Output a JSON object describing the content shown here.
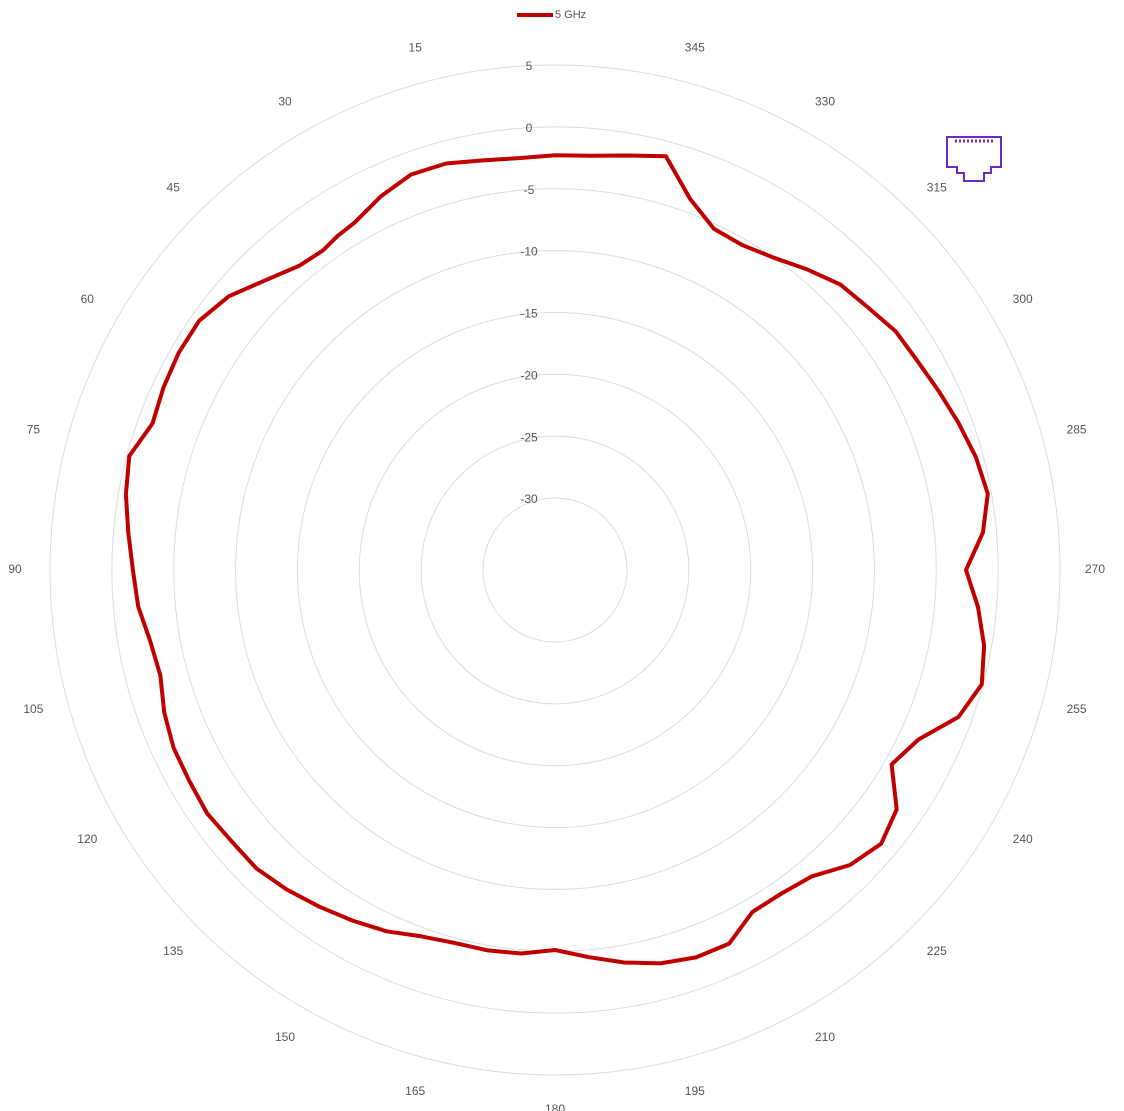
{
  "chart_data": {
    "type": "polar-line",
    "title": "",
    "legend": {
      "position": "top-center",
      "entries": [
        {
          "name": "5 GHz",
          "color": "#c00000"
        }
      ]
    },
    "angle_direction": "counterclockwise",
    "zero_angle": "top",
    "angle_ticks": [
      0,
      15,
      30,
      45,
      60,
      75,
      90,
      105,
      120,
      135,
      150,
      165,
      180,
      195,
      210,
      225,
      240,
      255,
      270,
      285,
      300,
      315,
      330,
      345
    ],
    "angle_tick_labels": [
      "",
      "15",
      "30",
      "45",
      "60",
      "75",
      "90",
      "105",
      "120",
      "135",
      "150",
      "165",
      "180",
      "195",
      "210",
      "225",
      "240",
      "255",
      "270",
      "285",
      "300",
      "315",
      "330",
      "345"
    ],
    "radial_range": [
      -30,
      5
    ],
    "radial_ticks": [
      -30,
      -25,
      -20,
      -15,
      -10,
      -5,
      0,
      5
    ],
    "radial_tick_labels": [
      "-30",
      "-25",
      "-20",
      "-15",
      "-10",
      "-5",
      "0",
      "5"
    ],
    "grid": true,
    "series": [
      {
        "name": "5 GHz",
        "color": "#c00000",
        "theta": [
          0,
          5,
          10,
          15,
          20,
          25,
          30,
          33,
          36,
          40,
          45,
          50,
          55,
          60,
          65,
          70,
          75,
          80,
          85,
          90,
          95,
          100,
          105,
          110,
          115,
          120,
          125,
          130,
          135,
          140,
          145,
          150,
          155,
          160,
          165,
          170,
          175,
          180,
          185,
          190,
          195,
          200,
          205,
          210,
          215,
          220,
          225,
          230,
          235,
          240,
          245,
          250,
          255,
          260,
          265,
          270,
          275,
          280,
          285,
          290,
          295,
          300,
          305,
          310,
          315,
          320,
          325,
          330,
          335,
          340,
          345,
          350,
          355,
          360
        ],
        "r": [
          -2.3,
          -2.4,
          -2.2,
          -1.8,
          -1.8,
          -2.5,
          -3.4,
          -3.6,
          -3.9,
          -3.7,
          -2.7,
          -1.4,
          -0.7,
          -0.7,
          -0.9,
          -1.2,
          -0.2,
          -0.6,
          -1.2,
          -1.7,
          -2.0,
          -2.6,
          -2.8,
          -2.2,
          -1.8,
          -1.7,
          -1.5,
          -1.7,
          -1.7,
          -2.1,
          -2.6,
          -3.1,
          -3.6,
          -4.3,
          -4.6,
          -4.6,
          -4.7,
          -5.1,
          -4.4,
          -3.6,
          -2.9,
          -2.5,
          -2.5,
          -3.9,
          -3.9,
          -3.5,
          -2.1,
          -1.4,
          -2.1,
          -4.4,
          -3.4,
          -1.1,
          -0.1,
          -0.6,
          -1.5,
          -2.6,
          -1.1,
          -0.3,
          -0.6,
          -1.1,
          -1.6,
          -2.0,
          -2.2,
          -2.8,
          -3.2,
          -4.1,
          -5.0,
          -5.5,
          -5.4,
          -3.9,
          -1.2,
          -1.8,
          -2.2,
          -2.3
        ]
      }
    ]
  },
  "decoration": {
    "icon": "ethernet-port-icon",
    "icon_color": "#6a2bc2"
  }
}
